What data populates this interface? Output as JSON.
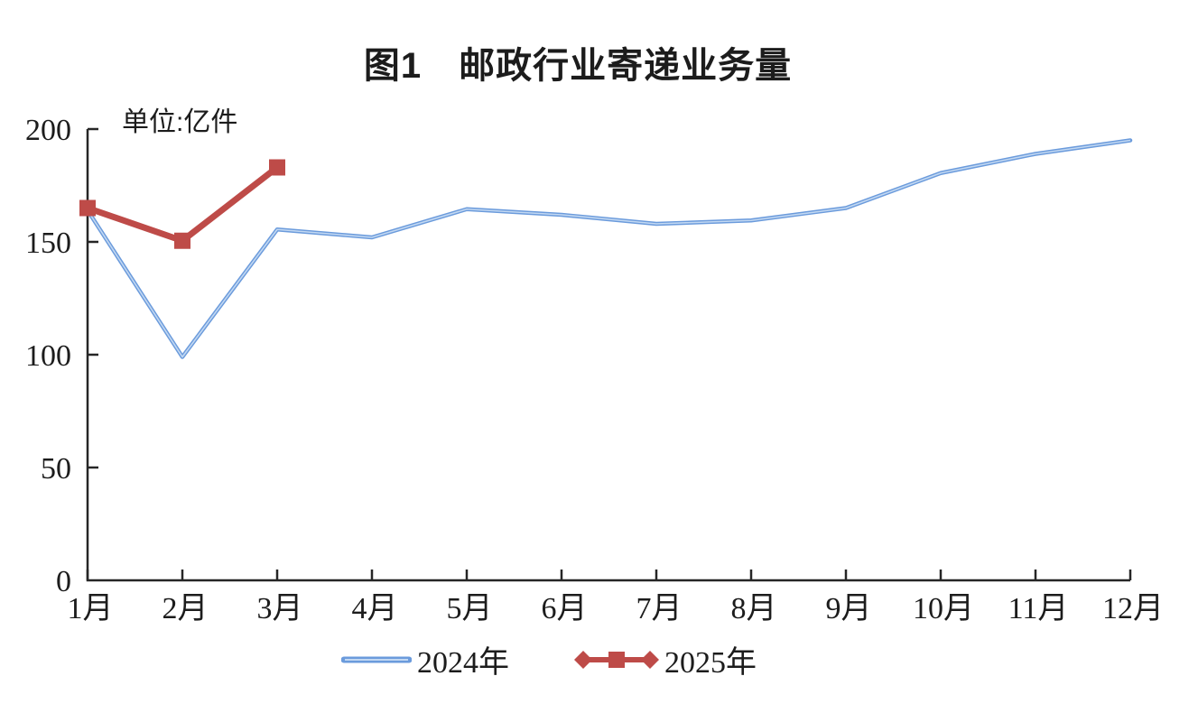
{
  "title": "图1　邮政行业寄递业务量",
  "unit_label": "单位:亿件",
  "legend": {
    "items": [
      {
        "label": "2024年",
        "series": "2024"
      },
      {
        "label": "2025年",
        "series": "2025"
      }
    ]
  },
  "colors": {
    "axis": "#262626",
    "text": "#1c1c1c",
    "blue": "#6B9BDC",
    "blue_core": "#C2D8F2",
    "red": "#BE4B48"
  },
  "chart_data": {
    "type": "line",
    "categories": [
      "1月",
      "2月",
      "3月",
      "4月",
      "5月",
      "6月",
      "7月",
      "8月",
      "9月",
      "10月",
      "11月",
      "12月"
    ],
    "series": [
      {
        "name": "2024年",
        "color": "#6B9BDC",
        "marker": "none",
        "values": [
          164,
          99,
          155.5,
          152,
          164.5,
          162,
          158,
          159.5,
          165,
          180.5,
          189,
          195
        ]
      },
      {
        "name": "2025年",
        "color": "#BE4B48",
        "marker": "square",
        "values": [
          165,
          150.5,
          183,
          null,
          null,
          null,
          null,
          null,
          null,
          null,
          null,
          null
        ]
      }
    ],
    "title": "图1　邮政行业寄递业务量",
    "xlabel": "",
    "ylabel": "亿件",
    "ylim": [
      0,
      200
    ],
    "yticks": [
      0,
      50,
      100,
      150,
      200
    ],
    "grid": false,
    "legend_position": "bottom"
  }
}
